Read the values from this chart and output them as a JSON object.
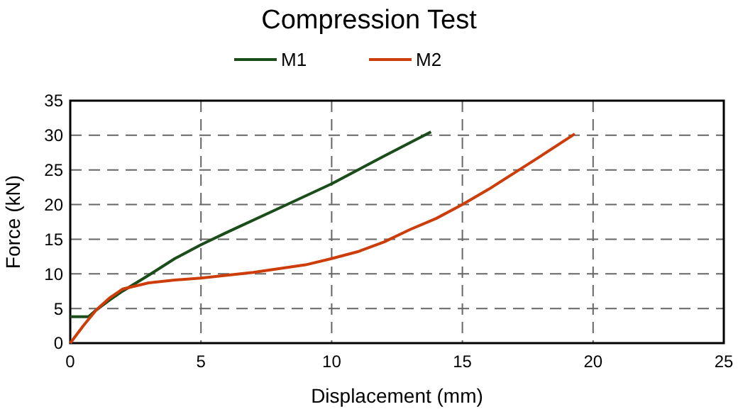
{
  "chart_data": {
    "type": "line",
    "title": "Compression Test",
    "xlabel": "Displacement (mm)",
    "ylabel": "Force (kN)",
    "xlim": [
      0,
      25
    ],
    "xticks": [
      0,
      5,
      10,
      15,
      20,
      25
    ],
    "ylim": [
      0,
      35
    ],
    "yticks": [
      0,
      5,
      10,
      15,
      20,
      25,
      30,
      35
    ],
    "grid": true,
    "legend": "top",
    "line_style": "solid",
    "series": [
      {
        "name": "M1",
        "color": "#1b4d1b",
        "x": [
          0,
          0.7,
          1,
          1.5,
          2,
          3,
          4,
          5,
          6,
          8,
          10,
          12,
          13.8
        ],
        "values": [
          3.8,
          3.8,
          4.8,
          6.2,
          7.5,
          9.8,
          12.2,
          14.2,
          16,
          19.5,
          23,
          27,
          30.5
        ]
      },
      {
        "name": "M2",
        "color": "#cc3d0a",
        "x": [
          0,
          0.5,
          1,
          1.5,
          2,
          3,
          4,
          5,
          7,
          9,
          10,
          11,
          12,
          13,
          14,
          15,
          16,
          17,
          18,
          19.3
        ],
        "values": [
          0,
          2.5,
          4.8,
          6.5,
          7.8,
          8.7,
          9.1,
          9.4,
          10.2,
          11.3,
          12.2,
          13.2,
          14.6,
          16.4,
          18,
          20,
          22.2,
          24.6,
          27,
          30.2
        ]
      }
    ]
  }
}
